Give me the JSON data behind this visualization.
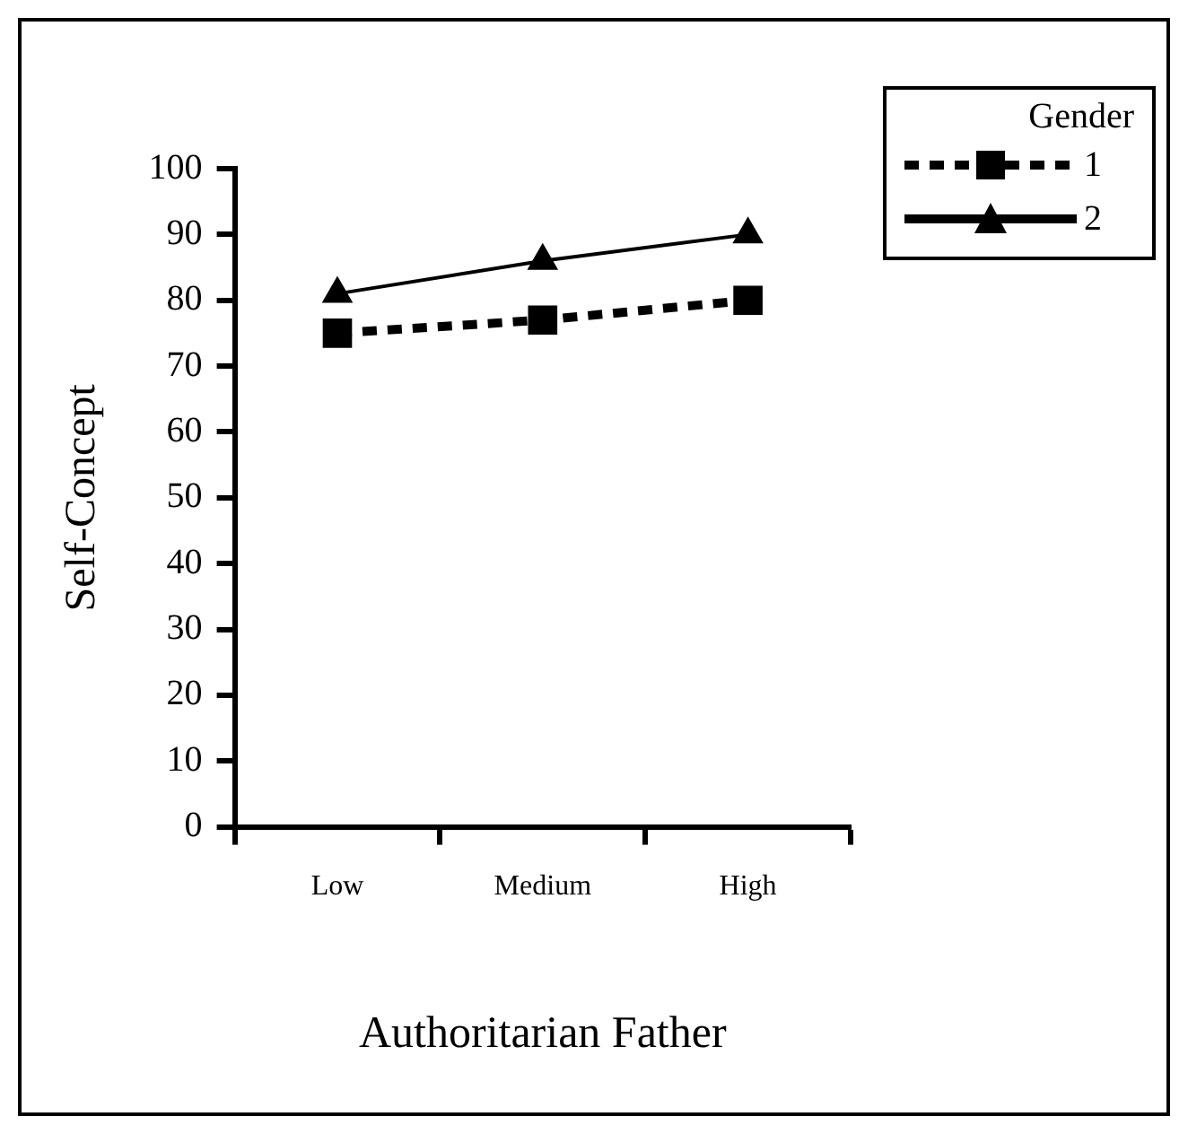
{
  "chart_data": {
    "type": "line",
    "xlabel": "Authoritarian Father",
    "ylabel": "Self-Concept",
    "legend_title": "Gender",
    "categories": [
      "Low",
      "Medium",
      "High"
    ],
    "series": [
      {
        "name": "1",
        "color": "#000000",
        "values": [
          75,
          77,
          80
        ],
        "marker": "square",
        "line_style": "dashed"
      },
      {
        "name": "2",
        "color": "#000000",
        "values": [
          81,
          86,
          90
        ],
        "marker": "triangle",
        "line_style": "solid"
      }
    ],
    "ylim": [
      0,
      100
    ],
    "yticks": [
      0,
      10,
      20,
      30,
      40,
      50,
      60,
      70,
      80,
      90,
      100
    ],
    "grid": false,
    "legend": "top right"
  }
}
